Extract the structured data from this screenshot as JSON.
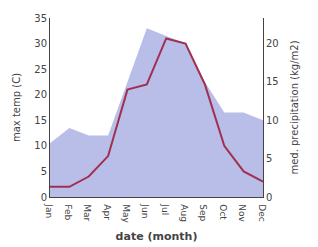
{
  "chart_data": {
    "type": "line",
    "xlabel": "date (month)",
    "ylabel": "max temp (C)",
    "y2label": "med. precipitation (kg/m2)",
    "categories": [
      "Jan",
      "Feb",
      "Mar",
      "Apr",
      "May",
      "Jun",
      "Jul",
      "Aug",
      "Sep",
      "Oct",
      "Nov",
      "Dec"
    ],
    "series": [
      {
        "type": "area",
        "color": "#b8bee8",
        "axis": "y2",
        "values": [
          7,
          9,
          8,
          8,
          15,
          22,
          21,
          20,
          15,
          11,
          11,
          10
        ]
      },
      {
        "type": "line",
        "color": "#a03050",
        "values": [
          2,
          2,
          4,
          8,
          21,
          22,
          31,
          30,
          22,
          10,
          5,
          3
        ]
      }
    ],
    "ylim": [
      0,
      35
    ],
    "yticks": [
      0,
      5,
      10,
      15,
      20,
      25,
      30,
      35
    ],
    "y2lim": [
      0,
      23.33
    ],
    "y2ticks": [
      0,
      5,
      10,
      15,
      20
    ],
    "grid": false
  }
}
